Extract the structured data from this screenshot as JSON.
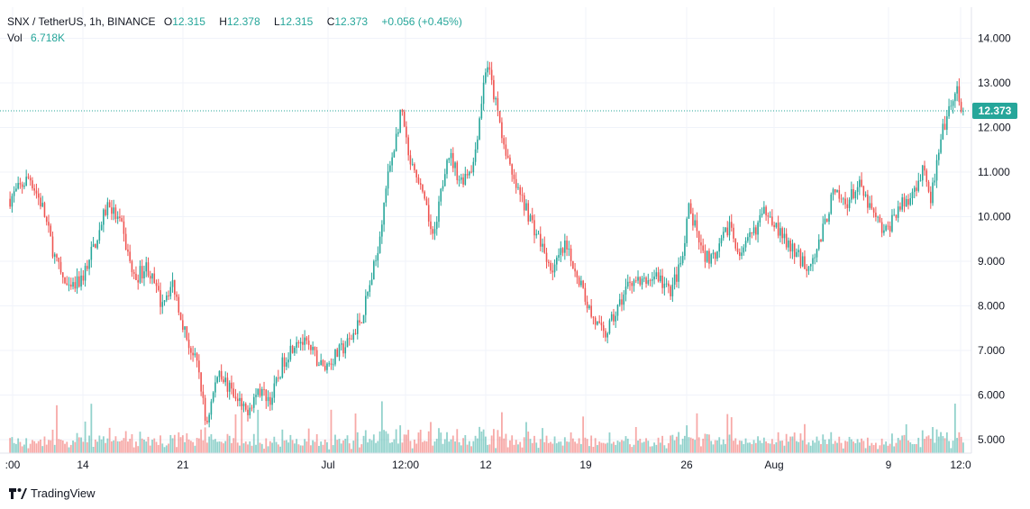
{
  "header": {
    "symbol": "SNX / TetherUS, 1h, BINANCE",
    "o_label": "O",
    "o_value": "12.315",
    "h_label": "H",
    "h_value": "12.378",
    "l_label": "L",
    "l_value": "12.315",
    "c_label": "C",
    "c_value": "12.373",
    "change": "+0.056 (+0.45%)",
    "vol_label": "Vol",
    "vol_value": "6.718K"
  },
  "brand": "TradingView",
  "last_price_label": "12.373",
  "colors": {
    "up": "#26a69a",
    "down": "#ef5350",
    "grid": "#f0f3fa",
    "text": "#131722"
  },
  "chart_data": {
    "type": "candlestick",
    "title": "SNX / TetherUS, 1h, BINANCE",
    "ylim": [
      4.8,
      14.6
    ],
    "y_ticks": [
      "5.000",
      "6.000",
      "7.000",
      "8.000",
      "9.000",
      "10.000",
      "11.000",
      "12.000",
      "13.000",
      "14.000"
    ],
    "x_ticks": [
      ":00",
      "14",
      "21",
      "Jul",
      "12:00",
      "12",
      "19",
      "26",
      "Aug",
      "9",
      "12:0"
    ],
    "last_price": 12.373,
    "close_path": [
      {
        "t": 0,
        "p": 10.4
      },
      {
        "t": 3,
        "p": 10.9
      },
      {
        "t": 5,
        "p": 10.2
      },
      {
        "t": 7,
        "p": 9.0
      },
      {
        "t": 9,
        "p": 8.3
      },
      {
        "t": 11,
        "p": 8.6
      },
      {
        "t": 13,
        "p": 9.4
      },
      {
        "t": 15,
        "p": 10.3
      },
      {
        "t": 17,
        "p": 9.8
      },
      {
        "t": 19,
        "p": 8.6
      },
      {
        "t": 21,
        "p": 8.9
      },
      {
        "t": 23,
        "p": 8.1
      },
      {
        "t": 25,
        "p": 8.5
      },
      {
        "t": 27,
        "p": 7.3
      },
      {
        "t": 29,
        "p": 6.5
      },
      {
        "t": 30,
        "p": 5.3
      },
      {
        "t": 32,
        "p": 6.6
      },
      {
        "t": 34,
        "p": 6.0
      },
      {
        "t": 36,
        "p": 5.6
      },
      {
        "t": 38,
        "p": 6.1
      },
      {
        "t": 40,
        "p": 5.9
      },
      {
        "t": 42,
        "p": 6.8
      },
      {
        "t": 44,
        "p": 7.3
      },
      {
        "t": 46,
        "p": 7.0
      },
      {
        "t": 48,
        "p": 6.6
      },
      {
        "t": 50,
        "p": 6.9
      },
      {
        "t": 52,
        "p": 7.2
      },
      {
        "t": 54,
        "p": 7.8
      },
      {
        "t": 56,
        "p": 9.0
      },
      {
        "t": 58,
        "p": 11.0
      },
      {
        "t": 60,
        "p": 12.4
      },
      {
        "t": 61,
        "p": 11.3
      },
      {
        "t": 63,
        "p": 10.5
      },
      {
        "t": 65,
        "p": 9.5
      },
      {
        "t": 67,
        "p": 11.5
      },
      {
        "t": 69,
        "p": 10.8
      },
      {
        "t": 71,
        "p": 11.2
      },
      {
        "t": 73,
        "p": 13.5
      },
      {
        "t": 75,
        "p": 12.1
      },
      {
        "t": 77,
        "p": 10.8
      },
      {
        "t": 79,
        "p": 10.2
      },
      {
        "t": 81,
        "p": 9.5
      },
      {
        "t": 83,
        "p": 8.8
      },
      {
        "t": 85,
        "p": 9.3
      },
      {
        "t": 87,
        "p": 8.7
      },
      {
        "t": 89,
        "p": 7.8
      },
      {
        "t": 91,
        "p": 7.3
      },
      {
        "t": 93,
        "p": 7.9
      },
      {
        "t": 95,
        "p": 8.6
      },
      {
        "t": 97,
        "p": 8.5
      },
      {
        "t": 99,
        "p": 8.7
      },
      {
        "t": 101,
        "p": 8.3
      },
      {
        "t": 103,
        "p": 9.0
      },
      {
        "t": 104,
        "p": 10.2
      },
      {
        "t": 106,
        "p": 9.2
      },
      {
        "t": 108,
        "p": 9.0
      },
      {
        "t": 110,
        "p": 9.8
      },
      {
        "t": 112,
        "p": 9.1
      },
      {
        "t": 114,
        "p": 9.7
      },
      {
        "t": 116,
        "p": 10.2
      },
      {
        "t": 118,
        "p": 9.6
      },
      {
        "t": 120,
        "p": 9.2
      },
      {
        "t": 122,
        "p": 8.9
      },
      {
        "t": 124,
        "p": 9.4
      },
      {
        "t": 126,
        "p": 10.5
      },
      {
        "t": 128,
        "p": 10.3
      },
      {
        "t": 130,
        "p": 10.7
      },
      {
        "t": 132,
        "p": 10.1
      },
      {
        "t": 134,
        "p": 9.6
      },
      {
        "t": 136,
        "p": 10.2
      },
      {
        "t": 138,
        "p": 10.4
      },
      {
        "t": 140,
        "p": 11.2
      },
      {
        "t": 141,
        "p": 10.4
      },
      {
        "t": 143,
        "p": 12.0
      },
      {
        "t": 145,
        "p": 12.8
      },
      {
        "t": 146,
        "p": 12.37
      }
    ]
  }
}
